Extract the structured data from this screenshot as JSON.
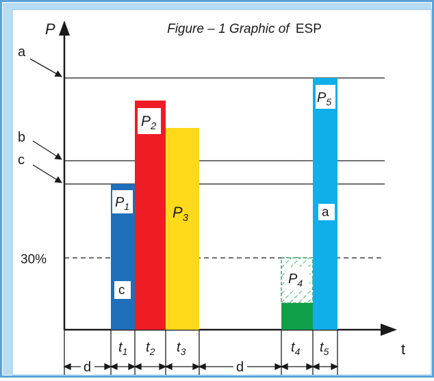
{
  "title": {
    "prefix": "Figure – 1 Graphic of",
    "suffix": "ESP"
  },
  "axes": {
    "y_label": "P",
    "x_label": "t"
  },
  "colors": {
    "frame": "#5aa2d8",
    "p1": "#1f6fba",
    "p2": "#ee1c25",
    "p3": "#ffd91a",
    "p4_fill": "#11a04a",
    "p4_hatch": "#11a04a",
    "p5": "#10aeea",
    "line": "#1a1a1a"
  },
  "levels": [
    {
      "letter": "a",
      "name": "level-a"
    },
    {
      "letter": "b",
      "name": "level-b"
    },
    {
      "letter": "c",
      "name": "level-c"
    }
  ],
  "threshold_label": "30%",
  "bars": [
    {
      "id": "p1",
      "label": "P",
      "sub": "1",
      "inner": "c"
    },
    {
      "id": "p2",
      "label": "P",
      "sub": "2"
    },
    {
      "id": "p3",
      "label": "P",
      "sub": "3"
    },
    {
      "id": "p4",
      "label": "P",
      "sub": "4"
    },
    {
      "id": "p5",
      "label": "P",
      "sub": "5",
      "inner": "a"
    }
  ],
  "time_ticks": [
    {
      "letter": "t",
      "sub": "1"
    },
    {
      "letter": "t",
      "sub": "2"
    },
    {
      "letter": "t",
      "sub": "3"
    },
    {
      "letter": "t",
      "sub": "4"
    },
    {
      "letter": "t",
      "sub": "5"
    }
  ],
  "delays": [
    "d",
    "d"
  ]
}
